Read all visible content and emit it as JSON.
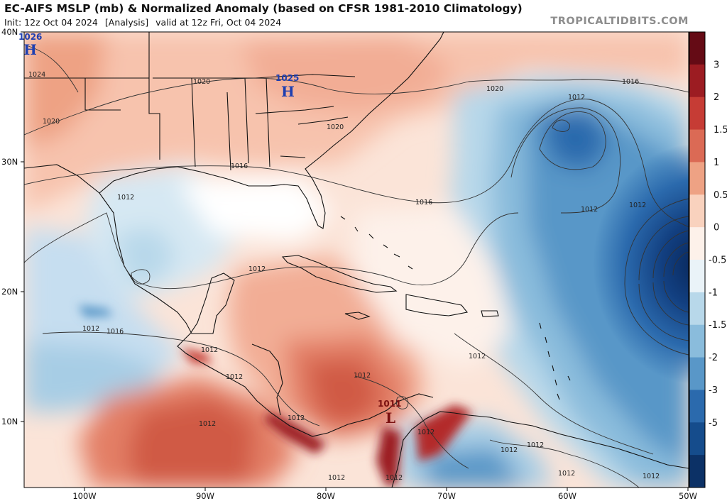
{
  "header": {
    "title": "EC-AIFS MSLP (mb) & Normalized Anomaly (based on CFSR 1981-2010 Climatology)",
    "init": "Init: 12z Oct 04 2024",
    "analysis": "[Analysis]",
    "valid": "valid at 12z Fri, Oct 04 2024",
    "brand": "TROPICALTIDBITS.COM"
  },
  "axes": {
    "lat_labels": [
      "40N",
      "30N",
      "20N",
      "10N"
    ],
    "lon_labels": [
      "100W",
      "90W",
      "80W",
      "70W",
      "60W",
      "50W"
    ]
  },
  "colorbar": {
    "ticks": [
      "3",
      "2",
      "1.5",
      "1",
      "0.5",
      "0",
      "-0.5",
      "-1",
      "-1.5",
      "-2",
      "-3",
      "-5"
    ],
    "colors": [
      "#650b15",
      "#9c1c22",
      "#c63c35",
      "#db6a55",
      "#eea284",
      "#f9d2be",
      "#fdf1ea",
      "#eaf3f8",
      "#b8d8ea",
      "#8abcdc",
      "#5997c8",
      "#2b6aad",
      "#154c8c",
      "#0c3166"
    ]
  },
  "systems": [
    {
      "letter": "H",
      "value": "1026",
      "color": "#1f3fb0"
    },
    {
      "letter": "H",
      "value": "1025",
      "color": "#1f3fb0"
    },
    {
      "letter": "L",
      "value": "1011",
      "color": "#a01a1a"
    }
  ],
  "contour_labels": [
    "1024",
    "1020",
    "1020",
    "1020",
    "1020",
    "1016",
    "1016",
    "1016",
    "1016",
    "1012",
    "1012",
    "1012",
    "1012",
    "1012",
    "1012",
    "1012",
    "1012",
    "1012",
    "1012",
    "1012",
    "1012",
    "1012",
    "1012",
    "1012",
    "1012",
    "1012",
    "1012",
    "1012"
  ]
}
